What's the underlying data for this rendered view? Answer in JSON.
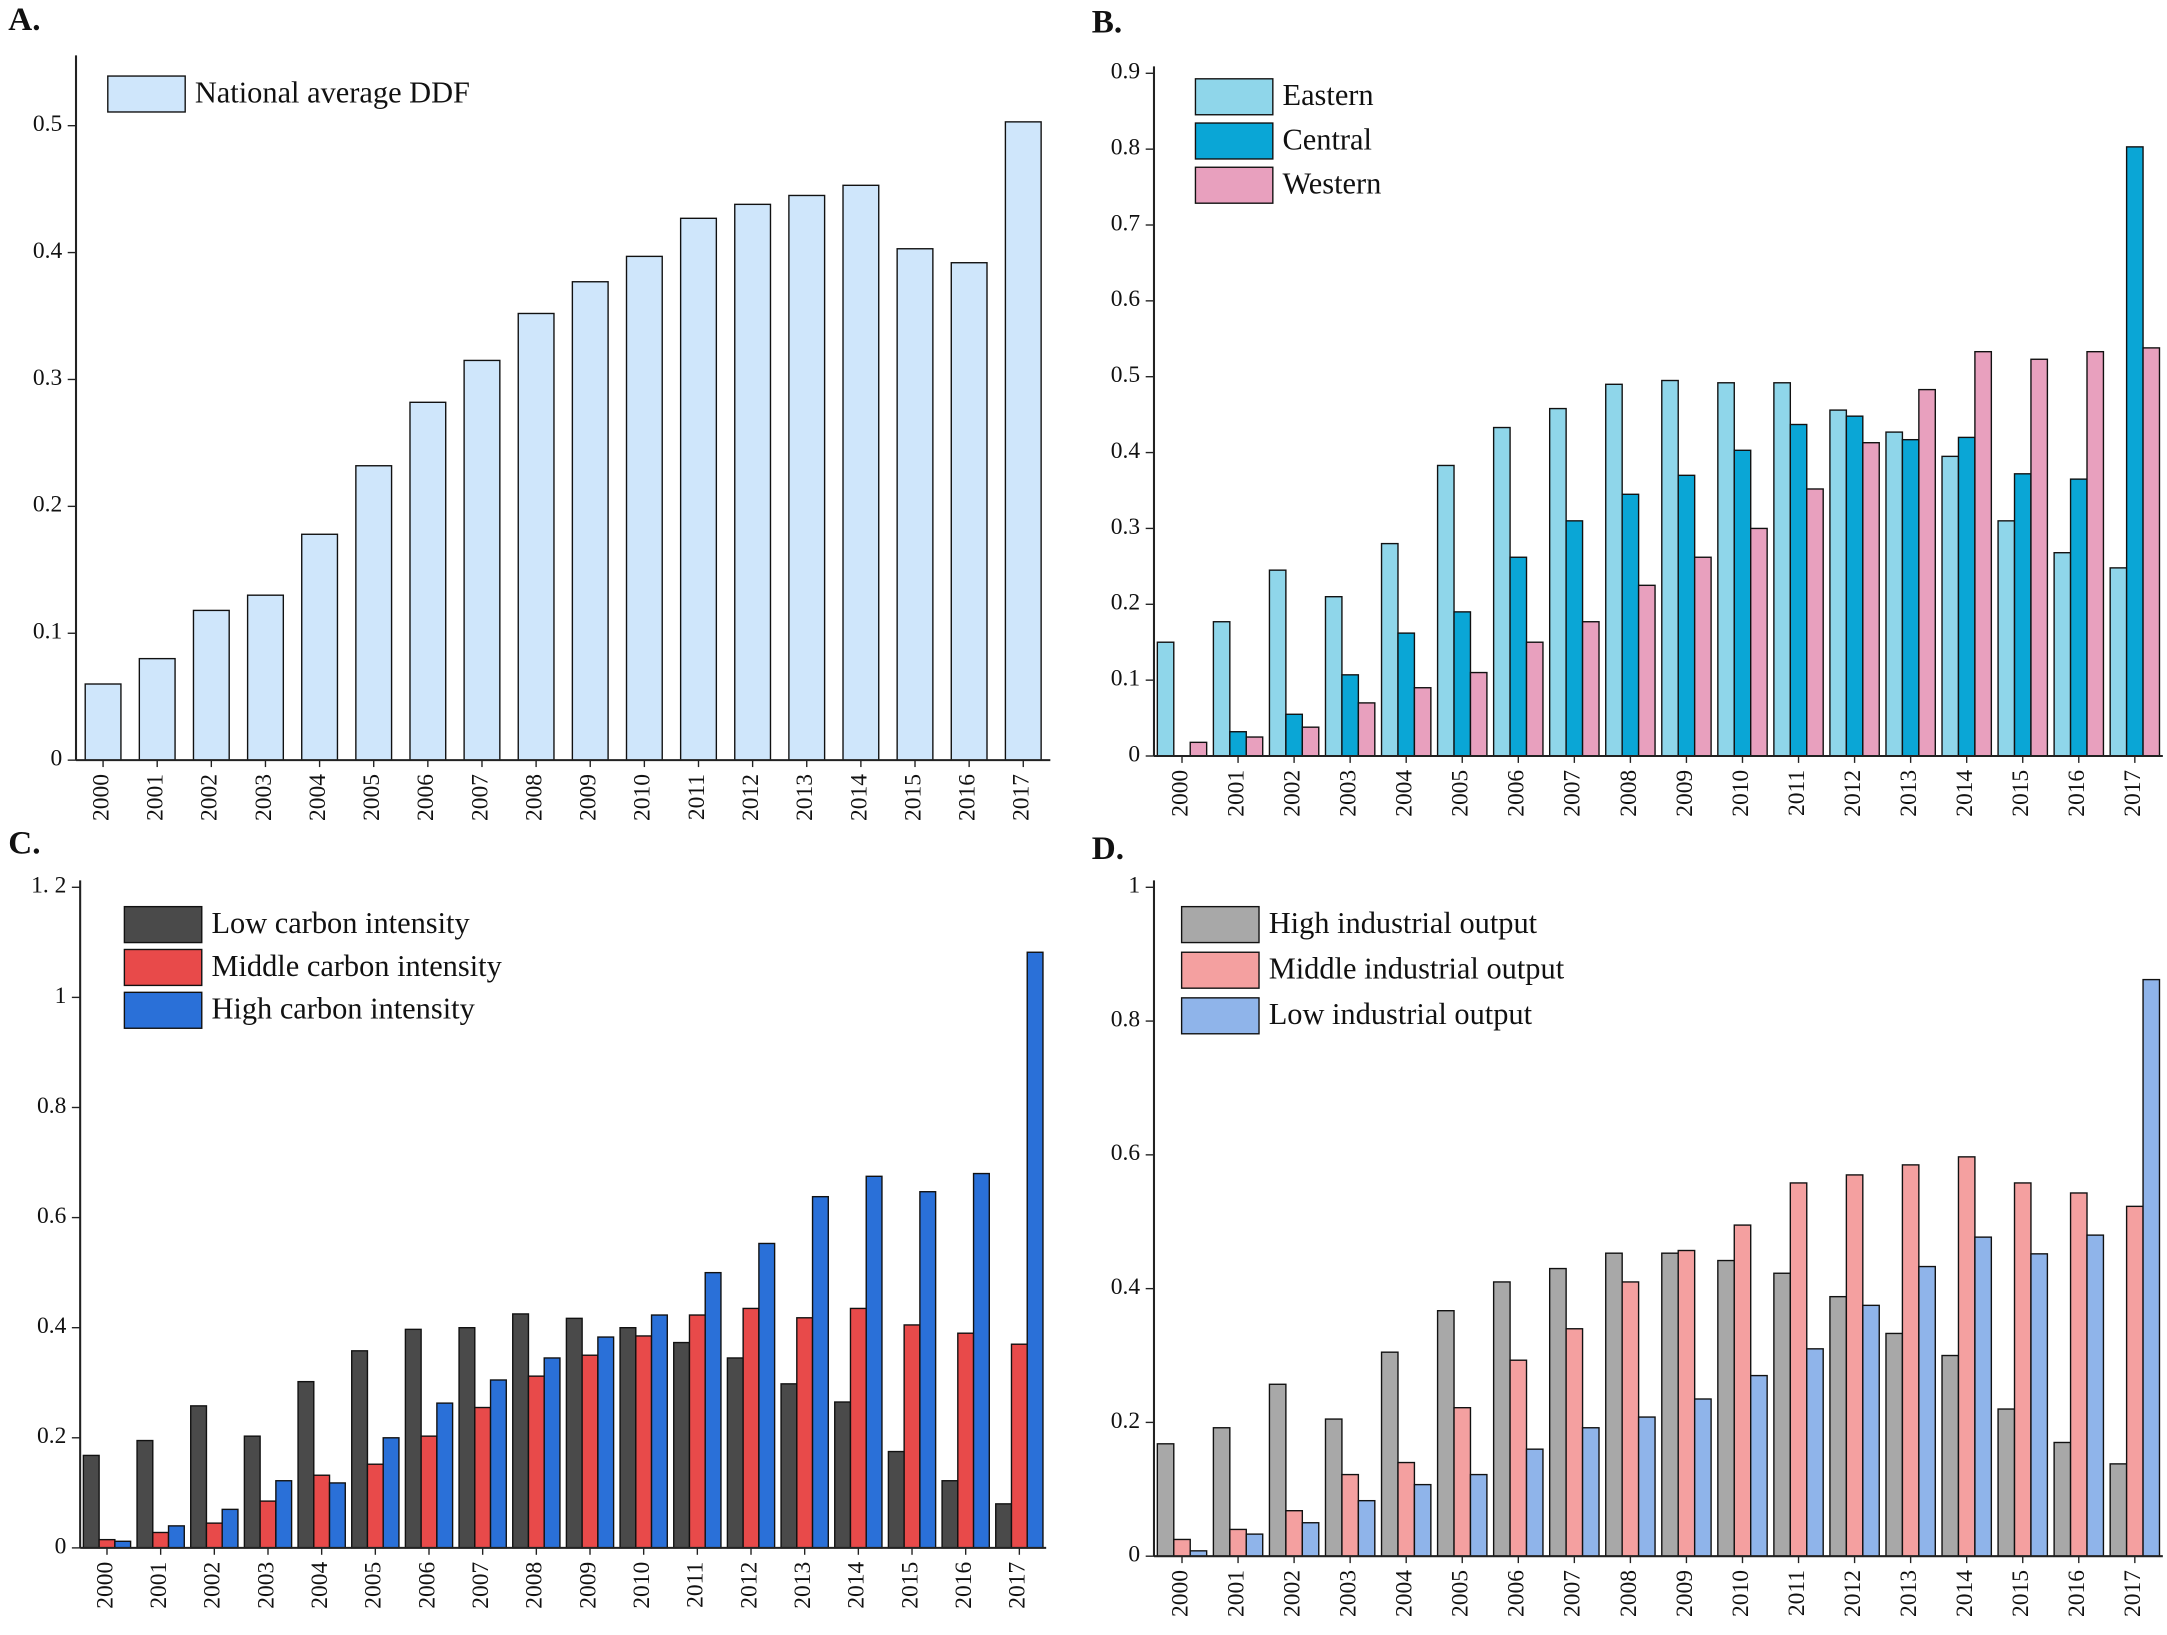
{
  "chart_data": [
    {
      "type": "bar",
      "panel_label": "A.",
      "legend_loc": "upper left",
      "categories": [
        "2000",
        "2001",
        "2002",
        "2003",
        "2004",
        "2005",
        "2006",
        "2007",
        "2008",
        "2009",
        "2010",
        "2011",
        "2012",
        "2013",
        "2014",
        "2015",
        "2016",
        "2017"
      ],
      "series": [
        {
          "name": "National average DDF",
          "color": "#cfe6fb",
          "values": [
            0.06,
            0.08,
            0.118,
            0.13,
            0.178,
            0.232,
            0.282,
            0.315,
            0.352,
            0.377,
            0.397,
            0.427,
            0.438,
            0.445,
            0.453,
            0.403,
            0.392,
            0.503
          ]
        }
      ],
      "ylim": [
        0,
        0.55
      ],
      "yticks": [
        0,
        0.1,
        0.2,
        0.3,
        0.4,
        0.5
      ]
    },
    {
      "type": "bar",
      "panel_label": "B.",
      "legend_loc": "upper left",
      "categories": [
        "2000",
        "2001",
        "2002",
        "2003",
        "2004",
        "2005",
        "2006",
        "2007",
        "2008",
        "2009",
        "2010",
        "2011",
        "2012",
        "2013",
        "2014",
        "2015",
        "2016",
        "2017"
      ],
      "series": [
        {
          "name": "Eastern",
          "color": "#8fd6ea",
          "values": [
            0.15,
            0.177,
            0.245,
            0.21,
            0.28,
            0.383,
            0.433,
            0.458,
            0.49,
            0.495,
            0.492,
            0.492,
            0.456,
            0.427,
            0.395,
            0.31,
            0.268,
            0.248
          ]
        },
        {
          "name": "Central",
          "color": "#0aa6d6",
          "values": [
            0,
            0.032,
            0.055,
            0.107,
            0.162,
            0.19,
            0.262,
            0.31,
            0.345,
            0.37,
            0.403,
            0.437,
            0.448,
            0.417,
            0.42,
            0.372,
            0.365,
            0.803
          ]
        },
        {
          "name": "Western",
          "color": "#e8a0be",
          "values": [
            0.018,
            0.025,
            0.038,
            0.07,
            0.09,
            0.11,
            0.15,
            0.177,
            0.225,
            0.262,
            0.3,
            0.352,
            0.413,
            0.483,
            0.533,
            0.523,
            0.533,
            0.538
          ]
        }
      ],
      "ylim": [
        0,
        0.9
      ],
      "yticks": [
        0,
        0.1,
        0.2,
        0.3,
        0.4,
        0.5,
        0.6,
        0.7,
        0.8,
        0.9
      ]
    },
    {
      "type": "bar",
      "panel_label": "C.",
      "legend_loc": "upper left",
      "categories": [
        "2000",
        "2001",
        "2002",
        "2003",
        "2004",
        "2005",
        "2006",
        "2007",
        "2008",
        "2009",
        "2010",
        "2011",
        "2012",
        "2013",
        "2014",
        "2015",
        "2016",
        "2017"
      ],
      "series": [
        {
          "name": "Low carbon intensity",
          "color": "#4a4a4a",
          "values": [
            0.168,
            0.195,
            0.258,
            0.203,
            0.302,
            0.358,
            0.397,
            0.4,
            0.425,
            0.417,
            0.4,
            0.373,
            0.345,
            0.298,
            0.265,
            0.175,
            0.122,
            0.08
          ]
        },
        {
          "name": "Middle carbon intensity",
          "color": "#e84a4a",
          "values": [
            0.015,
            0.028,
            0.045,
            0.085,
            0.132,
            0.152,
            0.203,
            0.255,
            0.312,
            0.35,
            0.385,
            0.423,
            0.435,
            0.418,
            0.435,
            0.405,
            0.39,
            0.37
          ]
        },
        {
          "name": "High carbon intensity",
          "color": "#2a70d8",
          "values": [
            0.012,
            0.04,
            0.07,
            0.122,
            0.118,
            0.2,
            0.263,
            0.305,
            0.345,
            0.383,
            0.423,
            0.5,
            0.553,
            0.638,
            0.675,
            0.647,
            0.68,
            1.082
          ]
        }
      ],
      "ylim": [
        0,
        1.2
      ],
      "yticks": [
        0,
        0.2,
        0.4,
        0.6,
        0.8,
        1,
        {
          "value": 1.2,
          "label": "1. 2"
        }
      ]
    },
    {
      "type": "bar",
      "panel_label": "D.",
      "legend_loc": "upper left",
      "categories": [
        "2000",
        "2001",
        "2002",
        "2003",
        "2004",
        "2005",
        "2006",
        "2007",
        "2008",
        "2009",
        "2010",
        "2011",
        "2012",
        "2013",
        "2014",
        "2015",
        "2016",
        "2017"
      ],
      "series": [
        {
          "name": "High industrial output",
          "color": "#a8a8a8",
          "values": [
            0.168,
            0.192,
            0.257,
            0.205,
            0.305,
            0.367,
            0.41,
            0.43,
            0.453,
            0.453,
            0.442,
            0.423,
            0.388,
            0.333,
            0.3,
            0.22,
            0.17,
            0.138
          ]
        },
        {
          "name": "Middle industrial output",
          "color": "#f4a0a0",
          "values": [
            0.025,
            0.04,
            0.068,
            0.122,
            0.14,
            0.222,
            0.293,
            0.34,
            0.41,
            0.457,
            0.495,
            0.558,
            0.57,
            0.585,
            0.597,
            0.558,
            0.543,
            0.523
          ]
        },
        {
          "name": "Low industrial output",
          "color": "#8fb4ea",
          "values": [
            0.008,
            0.033,
            0.05,
            0.083,
            0.107,
            0.122,
            0.16,
            0.192,
            0.208,
            0.235,
            0.27,
            0.31,
            0.375,
            0.433,
            0.477,
            0.452,
            0.48,
            0.862
          ]
        }
      ],
      "ylim": [
        0,
        1
      ],
      "yticks": [
        0,
        0.2,
        0.4,
        0.6,
        0.8,
        1
      ]
    }
  ]
}
